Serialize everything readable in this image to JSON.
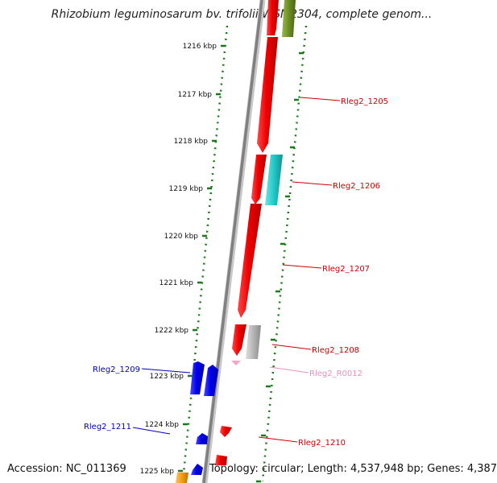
{
  "title": "Rhizobium leguminosarum bv. trifolii WSM2304, complete genom...",
  "footer": {
    "accession": "Accession: NC_011369",
    "topology": "Topology: circular; Length: 4,537,948 bp; Genes: 4,387"
  },
  "colors": {
    "backbone": "#808080",
    "ruler": "#1a7a1a",
    "red_gene": "#ee0000",
    "blue_gene": "#0000ee",
    "cyan_gene": "#22c8c8",
    "gray_gene": "#b4b4b4",
    "olive_gene": "#6b8e23",
    "orange_gene": "#f39c12",
    "pink_gene": "#f4a6c8",
    "red_label": "#cc0000",
    "blue_label": "#0000bb",
    "pink_label": "#e890b8"
  },
  "ruler": [
    {
      "id": "t1216",
      "label": "1216 kbp"
    },
    {
      "id": "t1217",
      "label": "1217 kbp"
    },
    {
      "id": "t1218",
      "label": "1218 kbp"
    },
    {
      "id": "t1219",
      "label": "1219 kbp"
    },
    {
      "id": "t1220",
      "label": "1220 kbp"
    },
    {
      "id": "t1221",
      "label": "1221 kbp"
    },
    {
      "id": "t1222",
      "label": "1222 kbp"
    },
    {
      "id": "t1223",
      "label": "1223 kbp"
    },
    {
      "id": "t1224",
      "label": "1224 kbp"
    },
    {
      "id": "t1225",
      "label": "1225 kbp"
    }
  ],
  "gene_labels": [
    {
      "id": "g1205",
      "text": "Rleg2_1205",
      "color": "red_label"
    },
    {
      "id": "g1206",
      "text": "Rleg2_1206",
      "color": "red_label"
    },
    {
      "id": "g1207",
      "text": "Rleg2_1207",
      "color": "red_label"
    },
    {
      "id": "g1208",
      "text": "Rleg2_1208",
      "color": "red_label"
    },
    {
      "id": "gR0012",
      "text": "Rleg2_R0012",
      "color": "pink_label"
    },
    {
      "id": "g1210",
      "text": "Rleg2_1210",
      "color": "red_label"
    },
    {
      "id": "g1209",
      "text": "Rleg2_1209",
      "color": "blue_label"
    },
    {
      "id": "g1211",
      "text": "Rleg2_1211",
      "color": "blue_label"
    }
  ]
}
